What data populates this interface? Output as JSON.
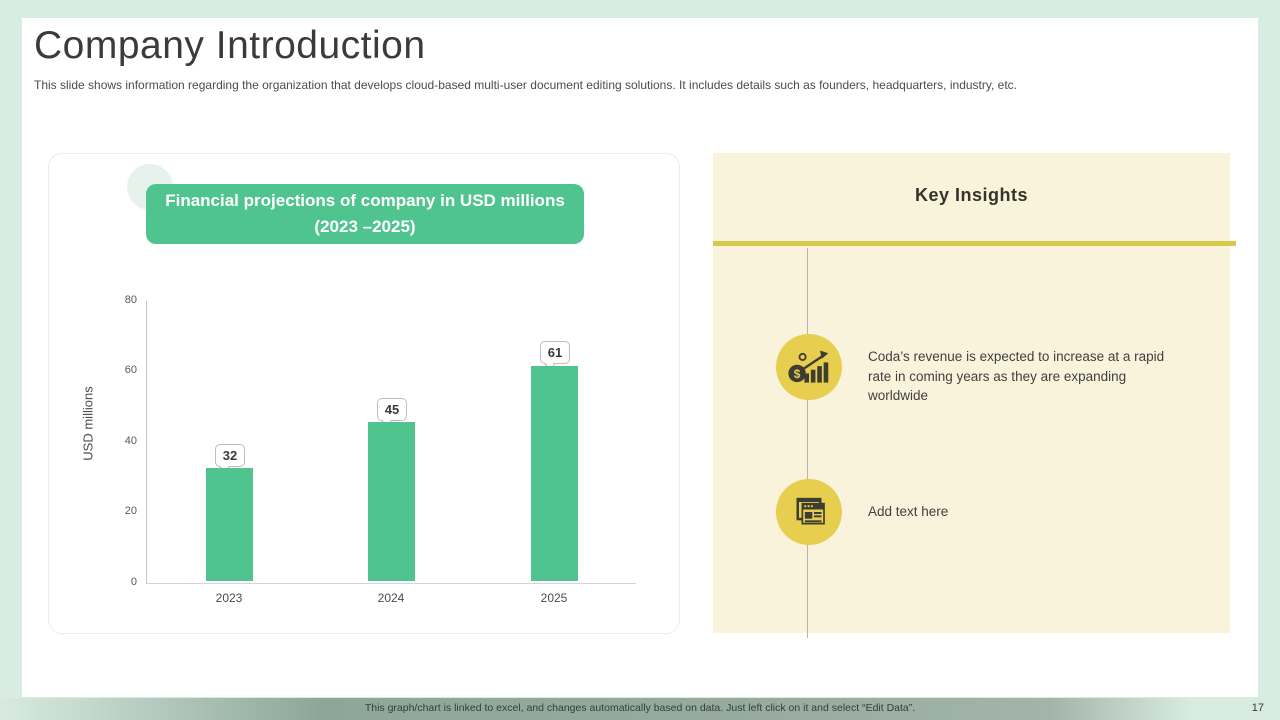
{
  "header": {
    "title": "Company Introduction",
    "subtitle": "This slide shows information regarding the organization that develops cloud-based multi-user document editing solutions. It includes details such as founders, headquarters, industry, etc."
  },
  "chart_data": {
    "type": "bar",
    "title": "Financial projections of company in USD millions (2023 –2025)",
    "categories": [
      "2023",
      "2024",
      "2025"
    ],
    "values": [
      32,
      45,
      61
    ],
    "xlabel": "",
    "ylabel": "USD millions",
    "ylim": [
      0,
      80
    ],
    "yticks": [
      80,
      60,
      40,
      20,
      0
    ],
    "grid": false,
    "legend": "none",
    "bar_color": "#4fc48f",
    "data_labels": "callout boxes above bars"
  },
  "insights": {
    "heading": "Key Insights",
    "items": [
      {
        "icon": "revenue-growth-icon",
        "text": "Coda’s revenue is expected to increase at a rapid rate in coming years as they are expanding worldwide"
      },
      {
        "icon": "documents-icon",
        "text": "Add text here"
      }
    ]
  },
  "footer": {
    "note": "This graph/chart is linked to excel, and changes automatically based on data. Just left click on it and select “Edit Data”.",
    "page_number": "17"
  },
  "colors": {
    "background_mint": "#d9ece2",
    "bar_green": "#4fc48f",
    "panel_cream": "#faf3dc",
    "divider_yellow": "#d8c94a",
    "icon_circle_yellow": "#e7ce4e",
    "icon_glyph_dark": "#3e3d32"
  }
}
